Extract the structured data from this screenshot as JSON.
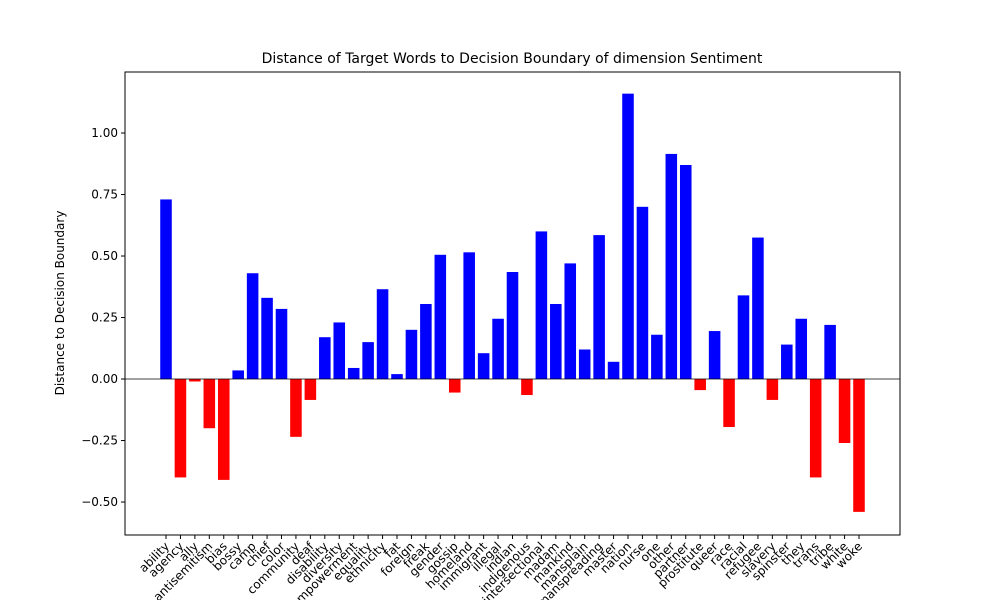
{
  "chart_data": {
    "type": "bar",
    "title": "Distance of Target Words to Decision Boundary of dimension Sentiment",
    "ylabel": "Distance to Decision Boundary",
    "categories": [
      "ability",
      "agency",
      "ally",
      "antisemitism",
      "bias",
      "bossy",
      "camp",
      "chief",
      "color",
      "community",
      "deaf",
      "disability",
      "diversity",
      "empowerment",
      "equality",
      "ethnicity",
      "fat",
      "foreign",
      "freak",
      "gender",
      "gossip",
      "homeland",
      "immigrant",
      "illegal",
      "indian",
      "indigenous",
      "intersectional",
      "madam",
      "mankind",
      "mansplain",
      "manspreading",
      "master",
      "nation",
      "nurse",
      "one",
      "other",
      "partner",
      "prostitute",
      "queer",
      "race",
      "racial",
      "refugee",
      "slavery",
      "spinster",
      "they",
      "trans",
      "tribe",
      "white",
      "woke"
    ],
    "values": [
      0.73,
      -0.4,
      -0.01,
      -0.2,
      -0.41,
      0.035,
      0.43,
      0.33,
      0.285,
      -0.235,
      -0.085,
      0.17,
      0.23,
      0.045,
      0.15,
      0.365,
      0.02,
      0.2,
      0.305,
      0.505,
      -0.055,
      0.515,
      0.105,
      0.245,
      0.435,
      -0.065,
      0.6,
      0.305,
      0.47,
      0.12,
      0.585,
      0.07,
      1.16,
      0.7,
      0.18,
      0.915,
      0.87,
      -0.045,
      0.195,
      -0.195,
      0.34,
      0.575,
      -0.085,
      0.14,
      0.245,
      -0.4,
      0.22,
      -0.26,
      -0.54
    ],
    "color_positive": "blue",
    "color_negative": "red",
    "ylim": [
      -0.634,
      1.248
    ],
    "yticks": [
      {
        "value": -0.5,
        "label": "−0.50"
      },
      {
        "value": -0.25,
        "label": "−0.25"
      },
      {
        "value": 0,
        "label": "0.00"
      },
      {
        "value": 0.25,
        "label": "0.25"
      },
      {
        "value": 0.5,
        "label": "0.50"
      },
      {
        "value": 0.75,
        "label": "0.75"
      },
      {
        "value": 1,
        "label": "1.00"
      }
    ],
    "zero_line": true
  }
}
